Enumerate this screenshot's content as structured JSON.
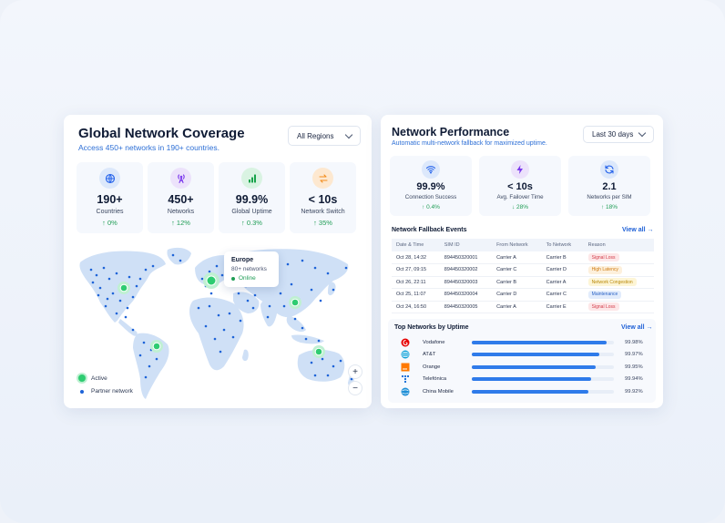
{
  "coverage": {
    "title": "Global Network Coverage",
    "subtitle": "Access 450+ networks in 190+ countries.",
    "region_select": "All Regions",
    "stats": [
      {
        "icon": "globe-icon",
        "value": "190+",
        "label": "Countries",
        "change": "↑ 0%",
        "color": "#2563eb",
        "bg": "#dce8fb"
      },
      {
        "icon": "antenna-icon",
        "value": "450+",
        "label": "Networks",
        "change": "↑ 12%",
        "color": "#7c3aed",
        "bg": "#ece2fb"
      },
      {
        "icon": "signal-bars-icon",
        "value": "99.9%",
        "label": "Global Uptime",
        "change": "↑ 0.3%",
        "color": "#16a34a",
        "bg": "#d9f3e2"
      },
      {
        "icon": "swap-arrows-icon",
        "value": "< 10s",
        "label": "Network Switch",
        "change": "↑ 35%",
        "color": "#f28c1b",
        "bg": "#fde8d0"
      }
    ],
    "tooltip": {
      "region": "Europe",
      "networks": "80+ networks",
      "status": "Online"
    },
    "legend": {
      "active": "Active",
      "partner": "Partner network"
    },
    "zoom_in": "+",
    "zoom_out": "−"
  },
  "performance": {
    "title": "Network Performance",
    "subtitle": "Automatic multi-network fallback for maximized uptime.",
    "range_select": "Last 30 days",
    "stats": [
      {
        "icon": "wifi-icon",
        "value": "99.9%",
        "label": "Connection Success",
        "change": "↑ 0.4%",
        "color": "#2563eb",
        "bg": "#dce8fb"
      },
      {
        "icon": "lightning-icon",
        "value": "< 10s",
        "label": "Avg. Failover Time",
        "change": "↓ 28%",
        "color": "#7c3aed",
        "bg": "#ece2fb"
      },
      {
        "icon": "refresh-icon",
        "value": "2.1",
        "label": "Networks per SIM",
        "change": "↑ 18%",
        "color": "#2563eb",
        "bg": "#dce8fb"
      }
    ],
    "events_title": "Network Fallback Events",
    "view_all": "View all →",
    "columns": [
      "Date & Time",
      "SIM ID",
      "From Network",
      "To Network",
      "Reason"
    ],
    "events": [
      {
        "date": "Oct 28, 14:32",
        "sim": "894450320001",
        "from": "Carrier A",
        "to": "Carrier B",
        "reason": "Signal Loss",
        "tone": "b-red"
      },
      {
        "date": "Oct 27, 09:15",
        "sim": "894450320002",
        "from": "Carrier C",
        "to": "Carrier D",
        "reason": "High Latency",
        "tone": "b-orange"
      },
      {
        "date": "Oct 26, 22:11",
        "sim": "894450320003",
        "from": "Carrier B",
        "to": "Carrier A",
        "reason": "Network Congestion",
        "tone": "b-yellow"
      },
      {
        "date": "Oct 25, 11:07",
        "sim": "894450320004",
        "from": "Carrier D",
        "to": "Carrier C",
        "reason": "Maintenance",
        "tone": "b-blue"
      },
      {
        "date": "Oct 24, 16:50",
        "sim": "894450320005",
        "from": "Carrier A",
        "to": "Carrier E",
        "reason": "Signal Loss",
        "tone": "b-red"
      }
    ],
    "top_title": "Top Networks by Uptime",
    "top_view_all": "View all →",
    "top_networks": [
      {
        "name": "Vodafone",
        "uptime": "99.98%",
        "fraction": 0.95,
        "logo": "vodafone-logo-icon",
        "color": "#e60000"
      },
      {
        "name": "AT&T",
        "uptime": "99.97%",
        "fraction": 0.9,
        "logo": "att-logo-icon",
        "color": "#0a9fd8"
      },
      {
        "name": "Orange",
        "uptime": "99.95%",
        "fraction": 0.87,
        "logo": "orange-logo-icon",
        "color": "#ff7900"
      },
      {
        "name": "Telefónica",
        "uptime": "99.94%",
        "fraction": 0.84,
        "logo": "telefonica-logo-icon",
        "color": "#0b66d6"
      },
      {
        "name": "China Mobile",
        "uptime": "99.92%",
        "fraction": 0.82,
        "logo": "china-mobile-logo-icon",
        "color": "#1f8fd6"
      }
    ]
  }
}
